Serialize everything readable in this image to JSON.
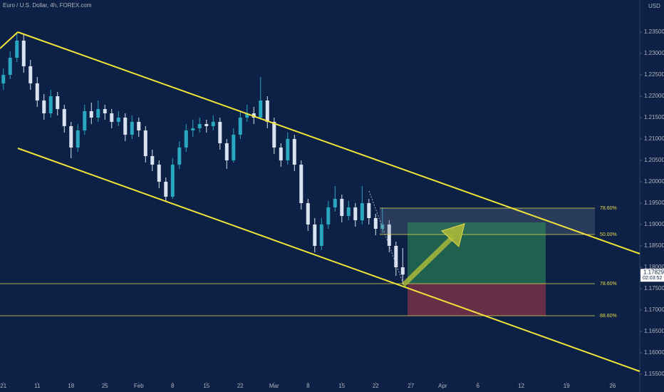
{
  "chart_data": {
    "type": "candlestick",
    "title": "Euro / U.S. Dollar, 4h, FOREX.com",
    "currency": "USD",
    "up_color": "#2aa7c0",
    "down_color": "#d9e3ef",
    "grid": false,
    "x": [
      0,
      1,
      2,
      3,
      4,
      5,
      6,
      7,
      8,
      9,
      10,
      11,
      12,
      13,
      14,
      15,
      16,
      17,
      18,
      19,
      20,
      21,
      22,
      23,
      24,
      25,
      26,
      27,
      28,
      29,
      30,
      31,
      32,
      33,
      34,
      35,
      36,
      37,
      38,
      39,
      40,
      41,
      42,
      43,
      44,
      45,
      46,
      47,
      48,
      49,
      50,
      51,
      52,
      53,
      54,
      55,
      56,
      57,
      58,
      59
    ],
    "open": [
      1.223,
      1.225,
      1.229,
      1.233,
      1.227,
      1.223,
      1.219,
      1.216,
      1.22,
      1.217,
      1.213,
      1.208,
      1.212,
      1.2165,
      1.215,
      1.217,
      1.216,
      1.214,
      1.215,
      1.211,
      1.214,
      1.212,
      1.206,
      1.204,
      1.2,
      1.1965,
      1.204,
      1.208,
      1.212,
      1.2125,
      1.2135,
      1.213,
      1.214,
      1.209,
      1.205,
      1.211,
      1.215,
      1.216,
      1.215,
      1.219,
      1.214,
      1.208,
      1.205,
      1.21,
      1.204,
      1.195,
      1.19,
      1.185,
      1.19,
      1.194,
      1.196,
      1.192,
      1.194,
      1.191,
      1.195,
      1.1915,
      1.189,
      1.19,
      1.185,
      1.18
    ],
    "high": [
      1.2265,
      1.2305,
      1.235,
      1.2345,
      1.2285,
      1.2245,
      1.2205,
      1.2215,
      1.221,
      1.218,
      1.214,
      1.2135,
      1.218,
      1.2185,
      1.219,
      1.218,
      1.217,
      1.2165,
      1.216,
      1.2155,
      1.215,
      1.213,
      1.2075,
      1.205,
      1.201,
      1.2055,
      1.2095,
      1.2135,
      1.2145,
      1.215,
      1.2145,
      1.2155,
      1.215,
      1.21,
      1.2125,
      1.2165,
      1.218,
      1.2175,
      1.2245,
      1.22,
      1.215,
      1.209,
      1.2115,
      1.211,
      1.205,
      1.196,
      1.1915,
      1.1915,
      1.1955,
      1.199,
      1.197,
      1.1955,
      1.195,
      1.199,
      1.196,
      1.1925,
      1.194,
      1.191,
      1.186,
      1.1845
    ],
    "low": [
      1.2215,
      1.224,
      1.228,
      1.2255,
      1.2215,
      1.2175,
      1.2145,
      1.215,
      1.2155,
      1.2115,
      1.2055,
      1.207,
      1.211,
      1.2135,
      1.214,
      1.2145,
      1.2125,
      1.213,
      1.2095,
      1.21,
      1.2105,
      1.2045,
      1.2025,
      1.1985,
      1.1955,
      1.196,
      1.203,
      1.207,
      1.2105,
      1.2115,
      1.2115,
      1.212,
      1.2075,
      1.203,
      1.2045,
      1.21,
      1.214,
      1.2135,
      1.2145,
      1.2125,
      1.2065,
      1.2035,
      1.204,
      1.2025,
      1.1935,
      1.1885,
      1.1835,
      1.184,
      1.189,
      1.193,
      1.1905,
      1.191,
      1.1895,
      1.19,
      1.19,
      1.1875,
      1.188,
      1.1835,
      1.178,
      1.176
    ],
    "close": [
      1.225,
      1.229,
      1.233,
      1.227,
      1.223,
      1.219,
      1.216,
      1.22,
      1.217,
      1.213,
      1.208,
      1.212,
      1.2165,
      1.215,
      1.217,
      1.216,
      1.214,
      1.215,
      1.211,
      1.214,
      1.212,
      1.206,
      1.204,
      1.2,
      1.1965,
      1.204,
      1.208,
      1.212,
      1.2125,
      1.2135,
      1.213,
      1.214,
      1.209,
      1.205,
      1.211,
      1.215,
      1.216,
      1.215,
      1.219,
      1.214,
      1.208,
      1.205,
      1.21,
      1.204,
      1.195,
      1.19,
      1.185,
      1.19,
      1.194,
      1.196,
      1.192,
      1.194,
      1.191,
      1.195,
      1.1915,
      1.189,
      1.19,
      1.185,
      1.18,
      1.17829
    ],
    "last_price": 1.17829,
    "countdown": "02:03:52",
    "xlim": [
      -0.5,
      93.7
    ],
    "xticks": [
      {
        "value": 0,
        "label": "21"
      },
      {
        "value": 5,
        "label": "11"
      },
      {
        "value": 10,
        "label": "18"
      },
      {
        "value": 15,
        "label": "25"
      },
      {
        "value": 20,
        "label": "Feb"
      },
      {
        "value": 25,
        "label": "8"
      },
      {
        "value": 30,
        "label": "15"
      },
      {
        "value": 35,
        "label": "22"
      },
      {
        "value": 40,
        "label": "Mar"
      },
      {
        "value": 45,
        "label": "8"
      },
      {
        "value": 50,
        "label": "15"
      },
      {
        "value": 55,
        "label": "22"
      },
      {
        "value": 60.2,
        "label": "27"
      },
      {
        "value": 64.9,
        "label": "Apr"
      },
      {
        "value": 70.1,
        "label": "6"
      },
      {
        "value": 76.5,
        "label": "12"
      },
      {
        "value": 83.2,
        "label": "19"
      },
      {
        "value": 90,
        "label": "26"
      }
    ],
    "ylim": [
      1.151,
      1.2425
    ],
    "yticks": [
      {
        "value": 1.155,
        "label": "1.15500"
      },
      {
        "value": 1.16,
        "label": "1.16000"
      },
      {
        "value": 1.165,
        "label": "1.16500"
      },
      {
        "value": 1.17,
        "label": "1.17000"
      },
      {
        "value": 1.175,
        "label": "1.17500"
      },
      {
        "value": 1.18,
        "label": "1.18000"
      },
      {
        "value": 1.185,
        "label": "1.18500"
      },
      {
        "value": 1.19,
        "label": "1.19000"
      },
      {
        "value": 1.195,
        "label": "1.19500"
      },
      {
        "value": 1.2,
        "label": "1.20000"
      },
      {
        "value": 1.205,
        "label": "1.20500"
      },
      {
        "value": 1.21,
        "label": "1.21000"
      },
      {
        "value": 1.215,
        "label": "1.21500"
      },
      {
        "value": 1.22,
        "label": "1.22000"
      },
      {
        "value": 1.225,
        "label": "1.22500"
      },
      {
        "value": 1.23,
        "label": "1.23000"
      },
      {
        "value": 1.235,
        "label": "1.23500"
      }
    ],
    "annotations": [
      "78.60%",
      "50.00%",
      "78.60%",
      "88.60%"
    ]
  }
}
